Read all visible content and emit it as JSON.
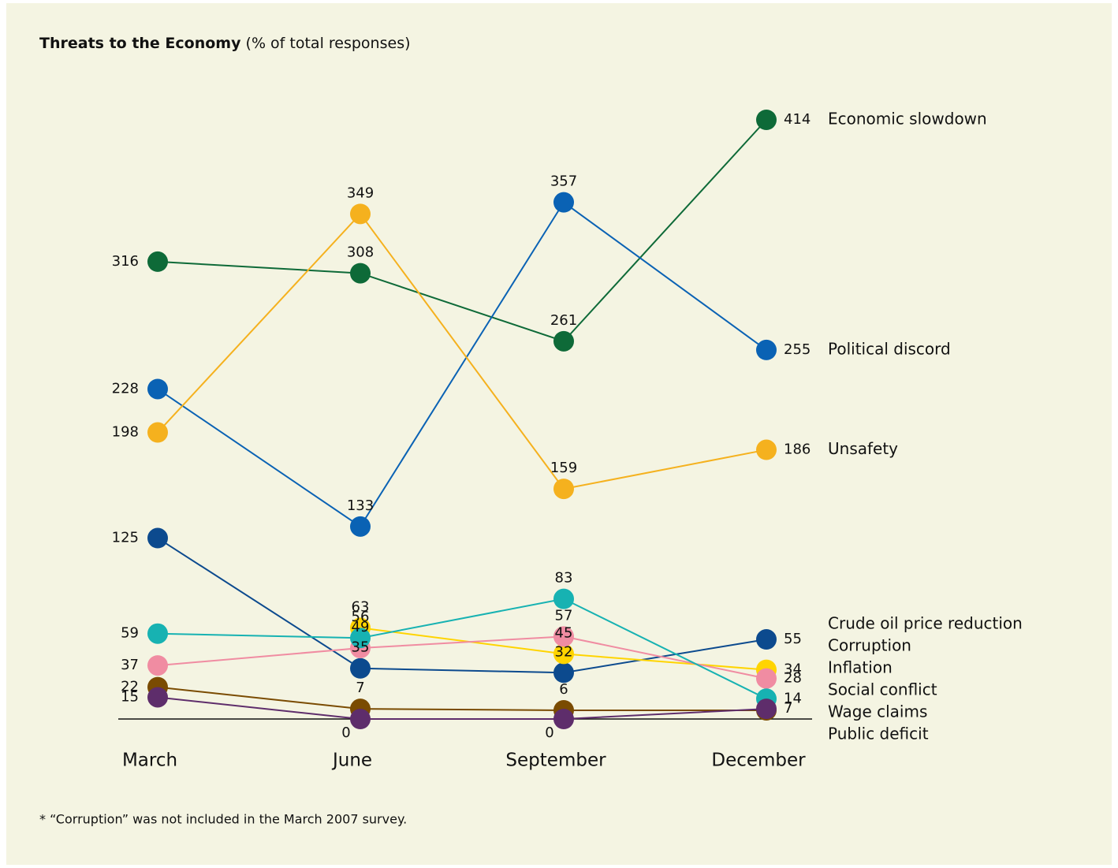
{
  "chart_data": {
    "type": "line",
    "title": "Threats to the Economy",
    "subtitle": "(% of total responses)",
    "categories": [
      "March",
      "June",
      "September",
      "December"
    ],
    "series": [
      {
        "name": "Economic slowdown",
        "color": "#0e6a38",
        "values": [
          316,
          308,
          261,
          414
        ]
      },
      {
        "name": "Political discord",
        "color": "#0a62b4",
        "values": [
          228,
          133,
          357,
          255
        ]
      },
      {
        "name": "Unsafety",
        "color": "#f5b11e",
        "values": [
          198,
          349,
          159,
          186
        ]
      },
      {
        "name": "Crude oil price reduction",
        "color": "#0c4a8e",
        "values": [
          125,
          35,
          32,
          55
        ]
      },
      {
        "name": "Corruption",
        "color": "#ffd400",
        "values": [
          null,
          63,
          45,
          34
        ]
      },
      {
        "name": "Inflation",
        "color": "#f08ca2",
        "values": [
          37,
          49,
          57,
          28
        ]
      },
      {
        "name": "Social conflict",
        "color": "#17b2b2",
        "values": [
          59,
          56,
          83,
          14
        ]
      },
      {
        "name": "Wage claims",
        "color": "#7a4b02",
        "values": [
          22,
          7,
          6,
          6
        ],
        "value_labels": [
          "22",
          "7",
          "6",
          null
        ]
      },
      {
        "name": "Public deficit",
        "color": "#5e2d6b",
        "values": [
          15,
          0,
          0,
          7
        ]
      }
    ],
    "footnote": "* “Corruption” was not included in the March 2007 survey."
  }
}
